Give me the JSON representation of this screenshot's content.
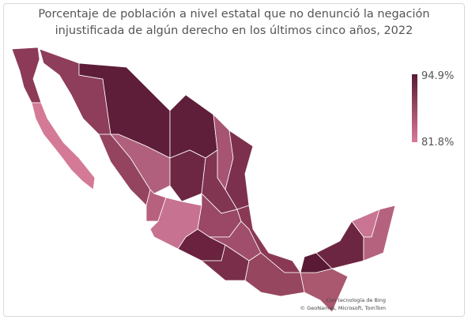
{
  "title": "Porcentaje de población a nivel estatal que no denunció la negación injustificada de algún derecho en los últimos cinco años, 2022",
  "legend": {
    "max": {
      "value": 94.9,
      "label": "94.9%"
    },
    "min": {
      "value": 81.8,
      "label": "81.8%"
    },
    "colors": [
      "#5a1a35",
      "#d97a98"
    ]
  },
  "attribution": [
    "Con tecnología de Bing",
    "© GeoNames, Microsoft, TomTom"
  ]
}
